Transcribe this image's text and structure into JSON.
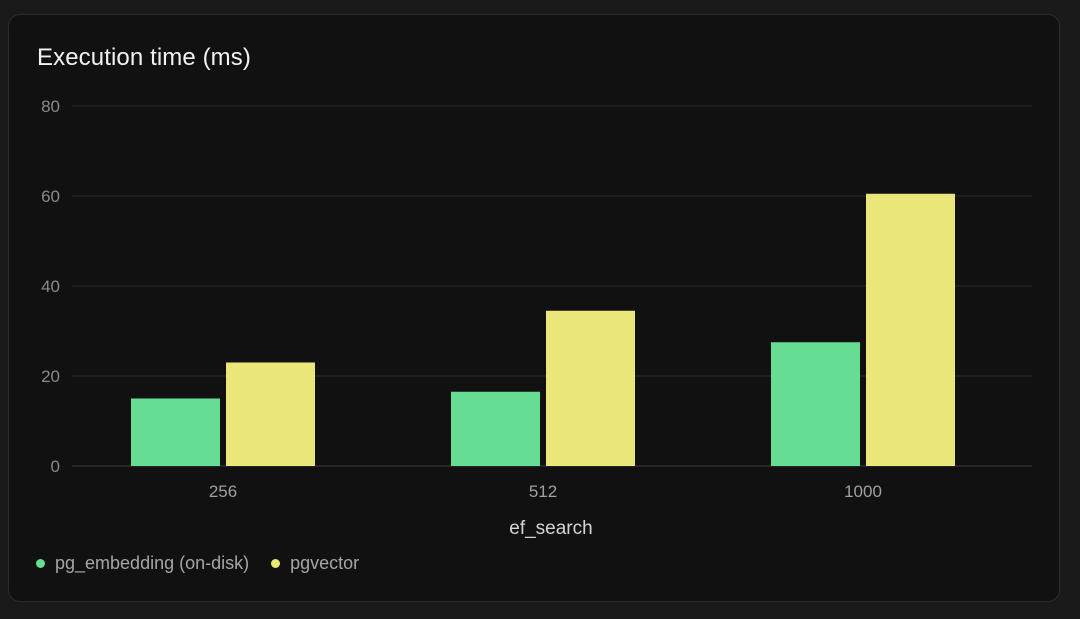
{
  "chart_data": {
    "type": "bar",
    "title": "Execution time (ms)",
    "xlabel": "ef_search",
    "ylabel": "",
    "categories": [
      "256",
      "512",
      "1000"
    ],
    "series": [
      {
        "name": "pg_embedding (on-disk)",
        "color": "#66dd92",
        "values": [
          15,
          16.5,
          27.5
        ]
      },
      {
        "name": "pgvector",
        "color": "#ebe679",
        "values": [
          23,
          34.5,
          60.5
        ]
      }
    ],
    "ylim": [
      0,
      80
    ],
    "yticks": [
      "0",
      "20",
      "40",
      "60",
      "80"
    ],
    "grid": true,
    "legend_position": "bottom-left"
  }
}
